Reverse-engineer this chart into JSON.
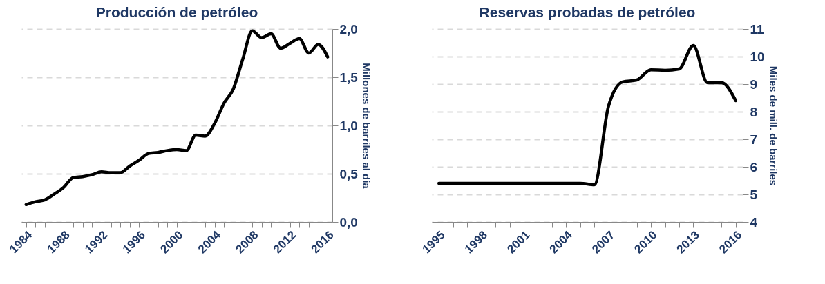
{
  "chart_data": [
    {
      "type": "line",
      "title": "Producción de petróleo",
      "ylabel": "Millones de barriles al día",
      "x": [
        1984,
        1985,
        1986,
        1987,
        1988,
        1989,
        1990,
        1991,
        1992,
        1993,
        1994,
        1995,
        1996,
        1997,
        1998,
        1999,
        2000,
        2001,
        2002,
        2003,
        2004,
        2005,
        2006,
        2007,
        2008,
        2009,
        2010,
        2011,
        2012,
        2013,
        2014,
        2015,
        2016
      ],
      "series": [
        {
          "color": "#000000",
          "values": [
            0.18,
            0.21,
            0.23,
            0.29,
            0.36,
            0.46,
            0.47,
            0.49,
            0.52,
            0.51,
            0.51,
            0.58,
            0.64,
            0.71,
            0.72,
            0.74,
            0.75,
            0.74,
            0.9,
            0.89,
            1.02,
            1.23,
            1.38,
            1.69,
            1.98,
            1.91,
            1.95,
            1.8,
            1.85,
            1.9,
            1.75,
            1.84,
            1.71
          ]
        }
      ],
      "xlim": [
        1983.5,
        2016.5
      ],
      "xticks": [
        1984,
        {
          "value": 1985,
          "label": null
        },
        {
          "value": 1986,
          "label": null
        },
        {
          "value": 1987,
          "label": null
        },
        1988,
        {
          "value": 1989,
          "label": null
        },
        {
          "value": 1990,
          "label": null
        },
        {
          "value": 1991,
          "label": null
        },
        1992,
        {
          "value": 1993,
          "label": null
        },
        {
          "value": 1994,
          "label": null
        },
        {
          "value": 1995,
          "label": null
        },
        1996,
        {
          "value": 1997,
          "label": null
        },
        {
          "value": 1998,
          "label": null
        },
        {
          "value": 1999,
          "label": null
        },
        2000,
        {
          "value": 2001,
          "label": null
        },
        {
          "value": 2002,
          "label": null
        },
        {
          "value": 2003,
          "label": null
        },
        2004,
        {
          "value": 2005,
          "label": null
        },
        {
          "value": 2006,
          "label": null
        },
        {
          "value": 2007,
          "label": null
        },
        2008,
        {
          "value": 2009,
          "label": null
        },
        {
          "value": 2010,
          "label": null
        },
        {
          "value": 2011,
          "label": null
        },
        2012,
        {
          "value": 2013,
          "label": null
        },
        {
          "value": 2014,
          "label": null
        },
        {
          "value": 2015,
          "label": null
        },
        2016
      ],
      "ylim": [
        0,
        2
      ],
      "yticks": [
        {
          "value": 0,
          "label": "0,0"
        },
        {
          "value": 0.5,
          "label": "0,5"
        },
        {
          "value": 1,
          "label": "1,0"
        },
        {
          "value": 1.5,
          "label": "1,5"
        },
        {
          "value": 2,
          "label": "2,0"
        }
      ],
      "grid": "y"
    },
    {
      "type": "line",
      "title": "Reservas probadas de petróleo",
      "ylabel": "Miles de mill. de barriles",
      "x": [
        1995,
        1996,
        1997,
        1998,
        1999,
        2000,
        2001,
        2002,
        2003,
        2004,
        2005,
        2006,
        2007,
        2008,
        2009,
        2010,
        2011,
        2012,
        2013,
        2014,
        2015,
        2016
      ],
      "series": [
        {
          "color": "#000000",
          "values": [
            5.4,
            5.4,
            5.4,
            5.4,
            5.4,
            5.4,
            5.4,
            5.4,
            5.4,
            5.4,
            5.4,
            5.35,
            8.2,
            9.08,
            9.15,
            9.52,
            9.5,
            9.55,
            10.4,
            9.05,
            9.05,
            8.4
          ]
        }
      ],
      "xlim": [
        1994.5,
        2016.5
      ],
      "xticks": [
        1995,
        {
          "value": 1996,
          "label": null
        },
        {
          "value": 1997,
          "label": null
        },
        1998,
        {
          "value": 1999,
          "label": null
        },
        {
          "value": 2000,
          "label": null
        },
        2001,
        {
          "value": 2002,
          "label": null
        },
        {
          "value": 2003,
          "label": null
        },
        2004,
        {
          "value": 2005,
          "label": null
        },
        {
          "value": 2006,
          "label": null
        },
        2007,
        {
          "value": 2008,
          "label": null
        },
        {
          "value": 2009,
          "label": null
        },
        2010,
        {
          "value": 2011,
          "label": null
        },
        {
          "value": 2012,
          "label": null
        },
        2013,
        {
          "value": 2014,
          "label": null
        },
        {
          "value": 2015,
          "label": null
        },
        2016
      ],
      "ylim": [
        4,
        11
      ],
      "yticks": [
        4,
        5,
        6,
        7,
        8,
        9,
        10,
        11
      ],
      "grid": "y"
    }
  ]
}
